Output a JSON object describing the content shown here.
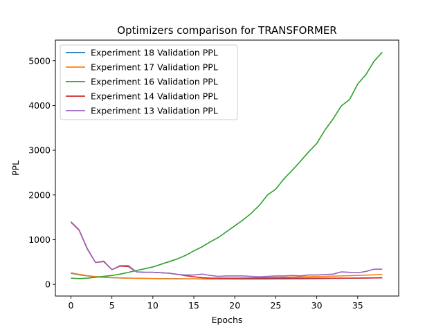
{
  "chart_data": {
    "type": "line",
    "title": "Optimizers comparison for TRANSFORMER",
    "xlabel": "Epochs",
    "ylabel": "PPL",
    "xlim": [
      -1.9,
      40
    ],
    "ylim": [
      -260,
      5460
    ],
    "xticks": [
      0,
      5,
      10,
      15,
      20,
      25,
      30,
      35
    ],
    "yticks": [
      0,
      1000,
      2000,
      3000,
      4000,
      5000
    ],
    "grid": false,
    "legend_position": "upper-left",
    "x": [
      0,
      1,
      2,
      3,
      4,
      5,
      6,
      7,
      8,
      9,
      10,
      11,
      12,
      13,
      14,
      15,
      16,
      17,
      18,
      19,
      20,
      21,
      22,
      23,
      24,
      25,
      26,
      27,
      28,
      29,
      30,
      31,
      32,
      33,
      34,
      35,
      36,
      37,
      38
    ],
    "series": [
      {
        "name": "Experiment 18 Validation PPL",
        "color": "#1f77b4",
        "values": [
          250,
          215,
          190,
          170,
          160,
          150,
          145,
          140,
          137,
          134,
          131,
          129,
          127,
          125,
          124,
          123,
          122,
          121,
          121,
          121,
          121,
          121,
          121,
          122,
          122,
          123,
          124,
          125,
          126,
          128,
          130,
          132,
          134,
          136,
          138,
          140,
          143,
          146,
          150
        ]
      },
      {
        "name": "Experiment 17 Validation PPL",
        "color": "#ff7f0e",
        "values": [
          260,
          225,
          195,
          175,
          162,
          152,
          145,
          140,
          136,
          133,
          130,
          128,
          126,
          125,
          124,
          124,
          125,
          127,
          130,
          133,
          136,
          140,
          144,
          148,
          152,
          156,
          160,
          164,
          168,
          172,
          176,
          180,
          185,
          190,
          195,
          200,
          207,
          214,
          222
        ]
      },
      {
        "name": "Experiment 16 Validation PPL",
        "color": "#2ca02c",
        "values": [
          140,
          130,
          140,
          160,
          180,
          200,
          230,
          270,
          310,
          350,
          390,
          450,
          510,
          570,
          650,
          750,
          840,
          950,
          1050,
          1180,
          1310,
          1440,
          1590,
          1770,
          2000,
          2130,
          2360,
          2550,
          2750,
          2960,
          3150,
          3450,
          3700,
          3990,
          4130,
          4480,
          4690,
          4990,
          5190
        ]
      },
      {
        "name": "Experiment 14 Validation PPL",
        "color": "#d62728",
        "values": [
          1390,
          1210,
          790,
          490,
          510,
          330,
          410,
          400,
          280,
          270,
          270,
          260,
          250,
          225,
          195,
          170,
          150,
          140,
          140,
          140,
          140,
          140,
          140,
          140,
          140,
          140,
          140,
          140,
          140,
          140,
          140,
          140,
          140,
          140,
          140,
          140,
          142,
          144,
          146
        ]
      },
      {
        "name": "Experiment 13 Validation PPL",
        "color": "#9467bd",
        "values": [
          1400,
          1220,
          800,
          490,
          520,
          330,
          420,
          420,
          280,
          270,
          270,
          260,
          250,
          220,
          210,
          210,
          230,
          200,
          180,
          190,
          190,
          190,
          180,
          170,
          180,
          190,
          190,
          200,
          190,
          210,
          210,
          220,
          230,
          280,
          270,
          260,
          290,
          340,
          340
        ]
      }
    ]
  }
}
